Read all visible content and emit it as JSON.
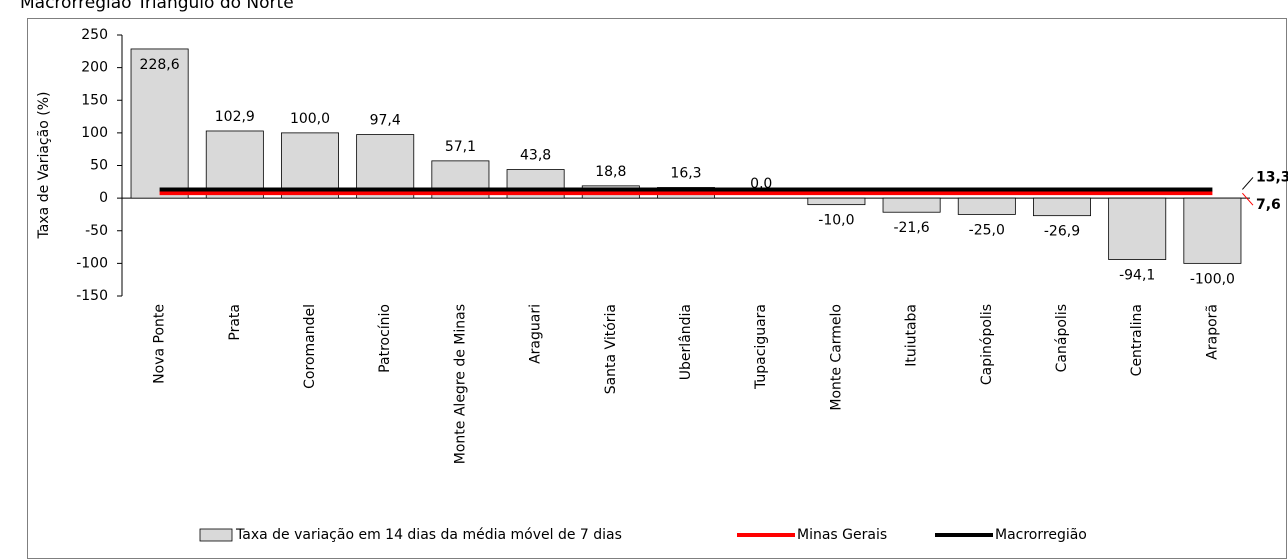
{
  "chart_data": {
    "type": "bar",
    "title": "Macrorregião Triângulo do Norte",
    "y_label": "Taxa de Variação (%)",
    "categories": [
      "Nova Ponte",
      "Prata",
      "Coromandel",
      "Patrocínio",
      "Monte Alegre de Minas",
      "Araguari",
      "Santa Vitória",
      "Uberlândia",
      "Tupaciguara",
      "Monte Carmelo",
      "Ituiutaba",
      "Capinópolis",
      "Canápolis",
      "Centralina",
      "Araporã"
    ],
    "series": [
      {
        "name": "Taxa de variação em 14 dias da média móvel de 7 dias",
        "type": "bar",
        "color": "#d9d9d9",
        "values": [
          228.6,
          102.9,
          100.0,
          97.4,
          57.1,
          43.8,
          18.8,
          16.3,
          0.0,
          -10.0,
          -21.6,
          -25.0,
          -26.9,
          -94.1,
          -100.0
        ],
        "value_labels": [
          "228,6",
          "102,9",
          "100,0",
          "97,4",
          "57,1",
          "43,8",
          "18,8",
          "16,3",
          "0,0",
          "-10,0",
          "-21,6",
          "-25,0",
          "-26,9",
          "-94,1",
          "-100,0"
        ]
      },
      {
        "name": "Minas Gerais",
        "type": "line",
        "color": "#ff0000",
        "values": [
          7.6,
          7.6,
          7.6,
          7.6,
          7.6,
          7.6,
          7.6,
          7.6,
          7.6,
          7.6,
          7.6,
          7.6,
          7.6,
          7.6,
          7.6
        ],
        "value_labels": [
          null,
          null,
          null,
          null,
          null,
          null,
          null,
          null,
          null,
          null,
          null,
          null,
          null,
          null,
          "7,6"
        ]
      },
      {
        "name": "Macrorregião",
        "type": "line",
        "color": "#000000",
        "values": [
          13.3,
          13.3,
          13.3,
          13.3,
          13.3,
          13.3,
          13.3,
          13.3,
          13.3,
          13.3,
          13.3,
          13.3,
          13.3,
          13.3,
          13.3
        ],
        "value_labels": [
          null,
          null,
          null,
          null,
          null,
          null,
          null,
          null,
          null,
          null,
          null,
          null,
          null,
          null,
          "13,3"
        ]
      }
    ],
    "ylim": [
      -150,
      250
    ],
    "yticks": [
      -150,
      -100,
      -50,
      0,
      50,
      100,
      150,
      200,
      250
    ],
    "legend": "bottom"
  }
}
